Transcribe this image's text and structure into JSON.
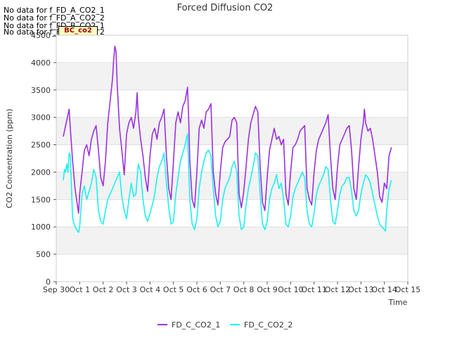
{
  "notes": [
    "No data for f_FD_A_CO2_1",
    "No data for f_FD_A_CO2_2",
    "No data for f_FD_B_CO2_1",
    "No data for f_FD_B_CO2_2"
  ],
  "badge": "BC_co2",
  "chart_data": {
    "type": "line",
    "title": "Forced Diffusion CO2",
    "xlabel": "Time",
    "ylabel": "CO2 Concentration (ppm)",
    "x_ticks": [
      "Sep 30",
      "Oct 1",
      "Oct 2",
      "Oct 3",
      "Oct 4",
      "Oct 5",
      "Oct 6",
      "Oct 7",
      "Oct 8",
      "Oct 9",
      "Oct 10",
      "Oct 11",
      "Oct 12",
      "Oct 13",
      "Oct 14",
      "Oct 15"
    ],
    "y_ticks": [
      0,
      500,
      1000,
      1500,
      2000,
      2500,
      3000,
      3500,
      4000,
      4500
    ],
    "ylim": [
      0,
      4500
    ],
    "grid": true,
    "legend": "bottom-center",
    "x_units": "days since Sep 30",
    "series": [
      {
        "name": "FD_C_CO2_1",
        "color": "#9b30e0",
        "points": [
          [
            0.3,
            2650
          ],
          [
            0.4,
            2850
          ],
          [
            0.5,
            3050
          ],
          [
            0.55,
            3150
          ],
          [
            0.6,
            2800
          ],
          [
            0.7,
            2200
          ],
          [
            0.8,
            1700
          ],
          [
            0.9,
            1400
          ],
          [
            0.95,
            1250
          ],
          [
            1.0,
            1600
          ],
          [
            1.1,
            2000
          ],
          [
            1.2,
            2400
          ],
          [
            1.3,
            2500
          ],
          [
            1.4,
            2300
          ],
          [
            1.5,
            2600
          ],
          [
            1.6,
            2750
          ],
          [
            1.7,
            2850
          ],
          [
            1.8,
            2400
          ],
          [
            1.9,
            1900
          ],
          [
            2.0,
            1750
          ],
          [
            2.1,
            2200
          ],
          [
            2.2,
            2900
          ],
          [
            2.3,
            3300
          ],
          [
            2.4,
            3700
          ],
          [
            2.45,
            4050
          ],
          [
            2.5,
            4300
          ],
          [
            2.55,
            4200
          ],
          [
            2.6,
            3600
          ],
          [
            2.7,
            2800
          ],
          [
            2.8,
            2400
          ],
          [
            2.9,
            1950
          ],
          [
            3.0,
            2700
          ],
          [
            3.1,
            2900
          ],
          [
            3.2,
            3000
          ],
          [
            3.3,
            2800
          ],
          [
            3.4,
            3100
          ],
          [
            3.45,
            3450
          ],
          [
            3.5,
            3000
          ],
          [
            3.6,
            2600
          ],
          [
            3.7,
            2300
          ],
          [
            3.8,
            1900
          ],
          [
            3.9,
            1650
          ],
          [
            4.0,
            2300
          ],
          [
            4.1,
            2700
          ],
          [
            4.2,
            2800
          ],
          [
            4.3,
            2600
          ],
          [
            4.4,
            2900
          ],
          [
            4.5,
            3000
          ],
          [
            4.6,
            3150
          ],
          [
            4.7,
            2300
          ],
          [
            4.8,
            1700
          ],
          [
            4.9,
            1500
          ],
          [
            5.0,
            2200
          ],
          [
            5.1,
            2900
          ],
          [
            5.2,
            3100
          ],
          [
            5.3,
            2900
          ],
          [
            5.4,
            3200
          ],
          [
            5.5,
            3300
          ],
          [
            5.6,
            3550
          ],
          [
            5.65,
            3000
          ],
          [
            5.7,
            2200
          ],
          [
            5.8,
            1500
          ],
          [
            5.9,
            1350
          ],
          [
            6.0,
            2000
          ],
          [
            6.1,
            2800
          ],
          [
            6.2,
            2950
          ],
          [
            6.3,
            2800
          ],
          [
            6.4,
            3100
          ],
          [
            6.5,
            3150
          ],
          [
            6.6,
            3250
          ],
          [
            6.7,
            2000
          ],
          [
            6.8,
            1600
          ],
          [
            6.9,
            1400
          ],
          [
            7.0,
            2000
          ],
          [
            7.1,
            2450
          ],
          [
            7.2,
            2550
          ],
          [
            7.3,
            2600
          ],
          [
            7.4,
            2650
          ],
          [
            7.5,
            2950
          ],
          [
            7.6,
            3000
          ],
          [
            7.7,
            2900
          ],
          [
            7.8,
            1600
          ],
          [
            7.9,
            1350
          ],
          [
            8.0,
            1650
          ],
          [
            8.1,
            2100
          ],
          [
            8.2,
            2600
          ],
          [
            8.3,
            2900
          ],
          [
            8.4,
            3050
          ],
          [
            8.5,
            3200
          ],
          [
            8.6,
            3100
          ],
          [
            8.7,
            2100
          ],
          [
            8.8,
            1450
          ],
          [
            8.9,
            1300
          ],
          [
            9.0,
            1900
          ],
          [
            9.1,
            2400
          ],
          [
            9.2,
            2600
          ],
          [
            9.3,
            2800
          ],
          [
            9.4,
            2600
          ],
          [
            9.5,
            2650
          ],
          [
            9.6,
            2500
          ],
          [
            9.7,
            2600
          ],
          [
            9.8,
            1600
          ],
          [
            9.9,
            1400
          ],
          [
            10.0,
            2000
          ],
          [
            10.1,
            2450
          ],
          [
            10.2,
            2500
          ],
          [
            10.3,
            2600
          ],
          [
            10.4,
            2750
          ],
          [
            10.5,
            2800
          ],
          [
            10.6,
            2850
          ],
          [
            10.7,
            1700
          ],
          [
            10.8,
            1500
          ],
          [
            10.9,
            1400
          ],
          [
            11.0,
            2000
          ],
          [
            11.1,
            2400
          ],
          [
            11.2,
            2600
          ],
          [
            11.3,
            2700
          ],
          [
            11.4,
            2800
          ],
          [
            11.5,
            2900
          ],
          [
            11.6,
            3050
          ],
          [
            11.7,
            2300
          ],
          [
            11.8,
            1700
          ],
          [
            11.9,
            1500
          ],
          [
            12.0,
            2100
          ],
          [
            12.1,
            2500
          ],
          [
            12.2,
            2600
          ],
          [
            12.3,
            2700
          ],
          [
            12.4,
            2800
          ],
          [
            12.5,
            2850
          ],
          [
            12.6,
            2400
          ],
          [
            12.7,
            1700
          ],
          [
            12.8,
            1500
          ],
          [
            12.9,
            2100
          ],
          [
            13.0,
            2600
          ],
          [
            13.1,
            2900
          ],
          [
            13.15,
            3150
          ],
          [
            13.2,
            2900
          ],
          [
            13.3,
            2750
          ],
          [
            13.4,
            2800
          ],
          [
            13.5,
            2600
          ],
          [
            13.6,
            2300
          ],
          [
            13.7,
            2000
          ],
          [
            13.8,
            1550
          ],
          [
            13.9,
            1450
          ],
          [
            14.0,
            1800
          ],
          [
            14.1,
            1700
          ],
          [
            14.2,
            2300
          ],
          [
            14.3,
            2450
          ]
        ]
      },
      {
        "name": "FD_C_CO2_2",
        "color": "#1ef0f0",
        "points": [
          [
            0.3,
            1850
          ],
          [
            0.35,
            2050
          ],
          [
            0.4,
            2000
          ],
          [
            0.45,
            2150
          ],
          [
            0.5,
            2000
          ],
          [
            0.55,
            2350
          ],
          [
            0.6,
            2300
          ],
          [
            0.65,
            1700
          ],
          [
            0.7,
            1150
          ],
          [
            0.8,
            1000
          ],
          [
            0.9,
            930
          ],
          [
            0.95,
            900
          ],
          [
            1.0,
            1000
          ],
          [
            1.1,
            1600
          ],
          [
            1.2,
            1750
          ],
          [
            1.3,
            1500
          ],
          [
            1.4,
            1650
          ],
          [
            1.5,
            1800
          ],
          [
            1.6,
            2050
          ],
          [
            1.7,
            1900
          ],
          [
            1.8,
            1300
          ],
          [
            1.9,
            1100
          ],
          [
            2.0,
            1050
          ],
          [
            2.1,
            1300
          ],
          [
            2.2,
            1500
          ],
          [
            2.3,
            1600
          ],
          [
            2.4,
            1700
          ],
          [
            2.5,
            1800
          ],
          [
            2.6,
            1900
          ],
          [
            2.7,
            2000
          ],
          [
            2.8,
            1550
          ],
          [
            2.9,
            1300
          ],
          [
            3.0,
            1150
          ],
          [
            3.1,
            1500
          ],
          [
            3.2,
            1800
          ],
          [
            3.3,
            1550
          ],
          [
            3.4,
            1600
          ],
          [
            3.5,
            2150
          ],
          [
            3.6,
            2000
          ],
          [
            3.7,
            1500
          ],
          [
            3.8,
            1200
          ],
          [
            3.9,
            1100
          ],
          [
            4.0,
            1250
          ],
          [
            4.1,
            1400
          ],
          [
            4.2,
            1600
          ],
          [
            4.3,
            1900
          ],
          [
            4.4,
            2100
          ],
          [
            4.5,
            2200
          ],
          [
            4.6,
            2350
          ],
          [
            4.7,
            1800
          ],
          [
            4.8,
            1350
          ],
          [
            4.9,
            1050
          ],
          [
            5.0,
            1100
          ],
          [
            5.1,
            1600
          ],
          [
            5.2,
            1900
          ],
          [
            5.3,
            2200
          ],
          [
            5.4,
            2350
          ],
          [
            5.5,
            2500
          ],
          [
            5.6,
            2700
          ],
          [
            5.65,
            2100
          ],
          [
            5.7,
            1500
          ],
          [
            5.8,
            1050
          ],
          [
            5.9,
            950
          ],
          [
            6.0,
            1150
          ],
          [
            6.1,
            1700
          ],
          [
            6.2,
            2000
          ],
          [
            6.3,
            2200
          ],
          [
            6.4,
            2350
          ],
          [
            6.5,
            2400
          ],
          [
            6.6,
            2300
          ],
          [
            6.7,
            1700
          ],
          [
            6.8,
            1200
          ],
          [
            6.9,
            1000
          ],
          [
            7.0,
            1100
          ],
          [
            7.1,
            1500
          ],
          [
            7.2,
            1700
          ],
          [
            7.3,
            1800
          ],
          [
            7.4,
            1900
          ],
          [
            7.5,
            2100
          ],
          [
            7.6,
            2200
          ],
          [
            7.7,
            2000
          ],
          [
            7.8,
            1200
          ],
          [
            7.9,
            950
          ],
          [
            8.0,
            1000
          ],
          [
            8.1,
            1400
          ],
          [
            8.2,
            1700
          ],
          [
            8.3,
            1900
          ],
          [
            8.4,
            2100
          ],
          [
            8.5,
            2350
          ],
          [
            8.6,
            2300
          ],
          [
            8.7,
            1600
          ],
          [
            8.8,
            1050
          ],
          [
            8.9,
            950
          ],
          [
            9.0,
            1100
          ],
          [
            9.1,
            1500
          ],
          [
            9.2,
            1700
          ],
          [
            9.3,
            1800
          ],
          [
            9.4,
            1950
          ],
          [
            9.5,
            1700
          ],
          [
            9.6,
            1800
          ],
          [
            9.7,
            1500
          ],
          [
            9.8,
            1050
          ],
          [
            9.9,
            1000
          ],
          [
            10.0,
            1200
          ],
          [
            10.1,
            1550
          ],
          [
            10.2,
            1700
          ],
          [
            10.3,
            1800
          ],
          [
            10.4,
            1900
          ],
          [
            10.5,
            2000
          ],
          [
            10.6,
            1900
          ],
          [
            10.7,
            1300
          ],
          [
            10.8,
            1050
          ],
          [
            10.9,
            1000
          ],
          [
            11.0,
            1250
          ],
          [
            11.1,
            1600
          ],
          [
            11.2,
            1750
          ],
          [
            11.3,
            1850
          ],
          [
            11.4,
            1950
          ],
          [
            11.5,
            2100
          ],
          [
            11.6,
            2050
          ],
          [
            11.7,
            1500
          ],
          [
            11.8,
            1100
          ],
          [
            11.9,
            1050
          ],
          [
            12.0,
            1300
          ],
          [
            12.1,
            1600
          ],
          [
            12.2,
            1750
          ],
          [
            12.3,
            1800
          ],
          [
            12.4,
            1900
          ],
          [
            12.5,
            1900
          ],
          [
            12.6,
            1650
          ],
          [
            12.7,
            1300
          ],
          [
            12.8,
            1200
          ],
          [
            12.9,
            1300
          ],
          [
            13.0,
            1600
          ],
          [
            13.1,
            1800
          ],
          [
            13.2,
            1950
          ],
          [
            13.3,
            1900
          ],
          [
            13.4,
            1800
          ],
          [
            13.5,
            1600
          ],
          [
            13.6,
            1400
          ],
          [
            13.7,
            1200
          ],
          [
            13.8,
            1050
          ],
          [
            13.9,
            1000
          ],
          [
            14.0,
            950
          ],
          [
            14.05,
            920
          ],
          [
            14.1,
            1300
          ],
          [
            14.2,
            1700
          ],
          [
            14.3,
            1850
          ]
        ]
      }
    ]
  }
}
